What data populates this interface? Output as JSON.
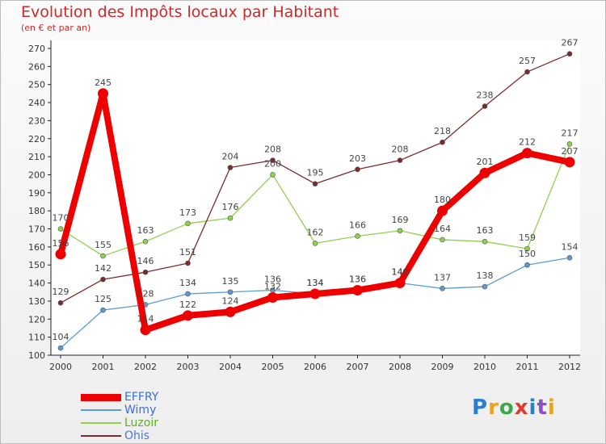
{
  "header": {
    "title": "Evolution des Impôts locaux par Habitant",
    "subtitle": "(en € et par an)"
  },
  "logo": {
    "text": "Proxiti",
    "colors": [
      "#2a7fd4",
      "#e8a320",
      "#3aa94a",
      "#e03a2c",
      "#2a7fd4",
      "#8a4fc7",
      "#e8a320"
    ]
  },
  "chart_data": {
    "type": "line",
    "x": [
      "2000",
      "2001",
      "2002",
      "2003",
      "2004",
      "2005",
      "2006",
      "2007",
      "2008",
      "2009",
      "2010",
      "2011",
      "2012"
    ],
    "ylim": [
      100,
      270
    ],
    "yticks": [
      100,
      110,
      120,
      130,
      140,
      150,
      160,
      170,
      180,
      190,
      200,
      210,
      220,
      230,
      240,
      250,
      260,
      270
    ],
    "grid": false,
    "legend_position": "bottom-left",
    "series": [
      {
        "name": "EFFRY",
        "color": "#ee0000",
        "labelColor": "#3b6ed8",
        "emphasis": true,
        "values": [
          156,
          245,
          114,
          122,
          124,
          132,
          134,
          136,
          140,
          180,
          201,
          212,
          207
        ],
        "labels": [
          "156",
          "245",
          "114",
          "122",
          "124",
          "132",
          "134",
          "136",
          "140",
          "180",
          "201",
          "212",
          "207"
        ]
      },
      {
        "name": "Wimy",
        "color": "#5b9bd5",
        "labelColor": "#3b6ed8",
        "values": [
          104,
          125,
          128,
          134,
          135,
          136,
          134,
          136,
          140,
          137,
          138,
          150,
          154
        ],
        "labels": [
          "104",
          "125",
          "128",
          "134",
          "135",
          "136",
          "134",
          "136",
          "140",
          "137",
          "138",
          "150",
          "154"
        ]
      },
      {
        "name": "Luzoir",
        "color": "#8fd14f",
        "labelColor": "#5fae2a",
        "values": [
          170,
          155,
          163,
          173,
          176,
          200,
          162,
          166,
          169,
          164,
          163,
          159,
          217
        ],
        "labels": [
          "170",
          "155",
          "163",
          "173",
          "176",
          "200",
          "162",
          "166",
          "169",
          "164",
          "163",
          "159",
          "217"
        ]
      },
      {
        "name": "Ohis",
        "color": "#7a2c2c",
        "labelColor": "#4a78d0",
        "values": [
          129,
          142,
          146,
          151,
          204,
          208,
          195,
          203,
          208,
          218,
          238,
          257,
          267
        ],
        "labels": [
          "129",
          "142",
          "146",
          "151",
          "204",
          "208",
          "195",
          "203",
          "208",
          "218",
          "238",
          "257",
          "267"
        ]
      }
    ]
  }
}
